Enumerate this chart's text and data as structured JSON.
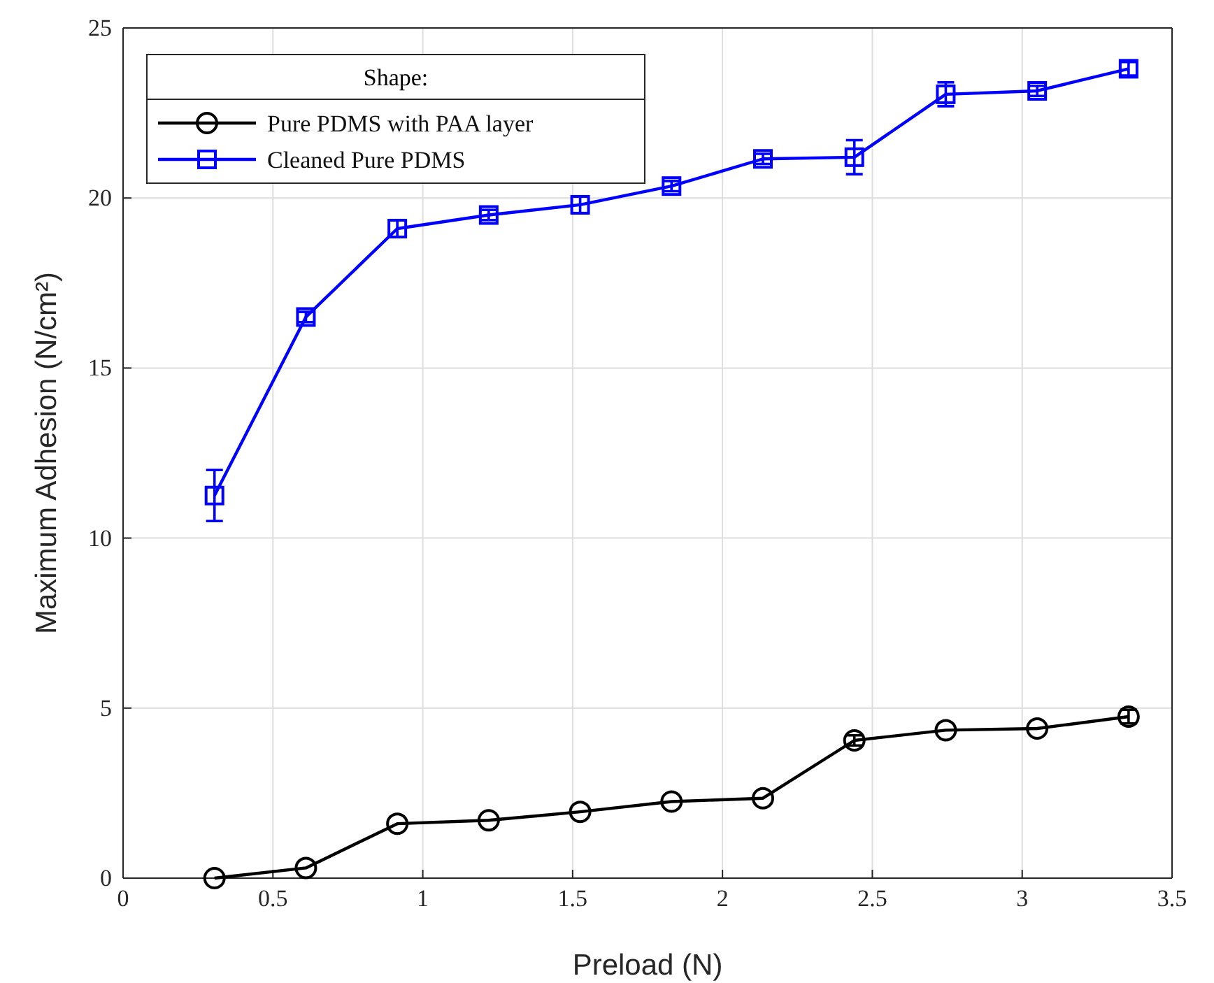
{
  "chart_data": {
    "type": "line",
    "xlabel": "Preload (N)",
    "ylabel": "Maximum Adhesion (N/cm²)",
    "legend_title": "Shape:",
    "legend": "top left",
    "grid": true,
    "line_style": "solid",
    "x": [
      0.305,
      0.61,
      0.915,
      1.22,
      1.525,
      1.83,
      2.135,
      2.44,
      2.745,
      3.05,
      3.355
    ],
    "xlim": [
      0,
      3.5
    ],
    "xticks": [
      0,
      0.5,
      1,
      1.5,
      2,
      2.5,
      3,
      3.5
    ],
    "ylim": [
      0,
      25
    ],
    "yticks": [
      0,
      5,
      10,
      15,
      20,
      25
    ],
    "series": [
      {
        "name": "Pure PDMS with PAA layer",
        "color": "#000000",
        "marker": "circle",
        "values": [
          0,
          0.3,
          1.6,
          1.7,
          1.95,
          2.25,
          2.35,
          4.05,
          4.35,
          4.4,
          4.75
        ],
        "errors": [
          null,
          null,
          null,
          null,
          null,
          null,
          null,
          0.15,
          null,
          null,
          0.2
        ]
      },
      {
        "name": "Cleaned Pure PDMS",
        "color": "#0000ff",
        "marker": "square",
        "values": [
          11.25,
          16.5,
          19.1,
          19.5,
          19.8,
          20.35,
          21.15,
          21.2,
          23.05,
          23.15,
          23.8
        ],
        "errors": [
          0.75,
          0.15,
          0.25,
          0.15,
          0.25,
          0.15,
          0.15,
          0.5,
          0.35,
          0.15,
          0.2
        ]
      }
    ]
  }
}
